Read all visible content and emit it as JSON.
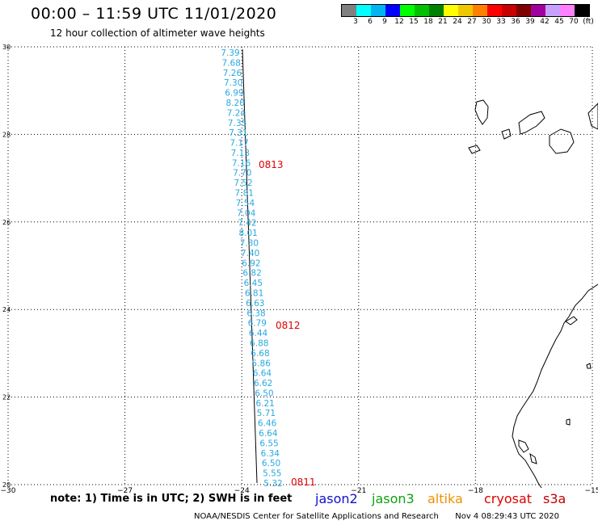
{
  "header": {
    "title": "00:00 – 11:59 UTC 11/01/2020",
    "subtitle": "12 hour collection of altimeter wave heights"
  },
  "legend": {
    "colors": [
      "#808080",
      "#00ffff",
      "#00b4f0",
      "#0000ff",
      "#00ff00",
      "#00c000",
      "#008000",
      "#ffff00",
      "#f0c800",
      "#ff8000",
      "#ff0000",
      "#c80000",
      "#800000",
      "#a000a0",
      "#c8a0ff",
      "#ff80ff",
      "#000000"
    ],
    "labels": [
      "3",
      "6",
      "9",
      "12",
      "15",
      "18",
      "21",
      "24",
      "27",
      "30",
      "33",
      "36",
      "39",
      "42",
      "45",
      "70",
      "(ft)"
    ]
  },
  "map": {
    "lon_range": [
      -30,
      -15
    ],
    "lat_range": [
      20,
      30
    ],
    "lon_ticks": [
      "−30",
      "−27",
      "−24",
      "−21",
      "−18",
      "−15"
    ],
    "lat_ticks": [
      "30",
      "28",
      "26",
      "24",
      "22",
      "20"
    ],
    "grid": true
  },
  "track": {
    "color": "#29a9e0",
    "heights": [
      "7.39",
      "7.68",
      "7.26",
      "7.30",
      "6.99",
      "8.20",
      "7.24",
      "7.35",
      "7.31",
      "7.17",
      "7.13",
      "7.16",
      "7.70",
      "7.52",
      "7.81",
      "7.54",
      "7.04",
      "7.42",
      "8.01",
      "7.30",
      "7.40",
      "6.92",
      "6.82",
      "6.45",
      "6.81",
      "6.63",
      "6.38",
      "6.79",
      "6.44",
      "6.88",
      "6.68",
      "5.86",
      "6.64",
      "6.62",
      "6.50",
      "6.21",
      "5.71",
      "6.46",
      "6.64",
      "6.55",
      "6.34",
      "6.50",
      "5.55",
      "5.32"
    ],
    "time_labels": [
      "0813",
      "0812",
      "0811"
    ],
    "time_color": "#e00000"
  },
  "footer": {
    "note": "note: 1) Time is in UTC; 2) SWH is in feet",
    "satellites": [
      "jason2",
      "jason3",
      "altika",
      "cryosat",
      "s3a"
    ],
    "credits": "NOAA/NESDIS Center for Satellite Applications and Research",
    "timestamp": "Nov  4 08:29:43 UTC 2020"
  }
}
